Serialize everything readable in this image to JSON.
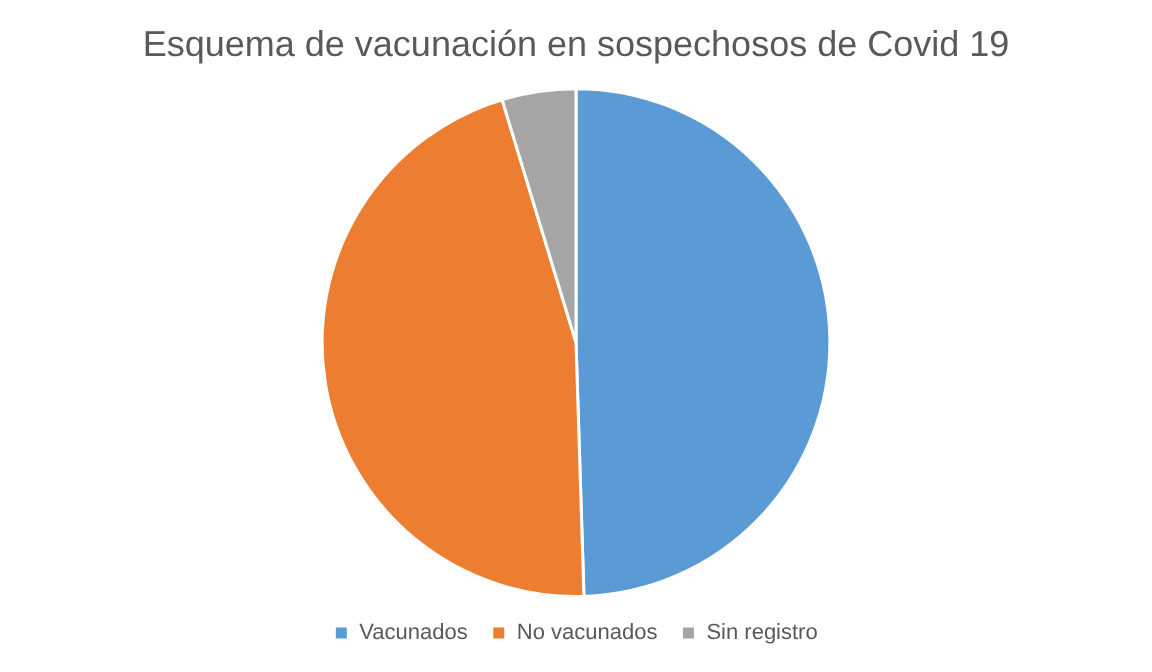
{
  "chart_data": {
    "type": "pie",
    "title": "Esquema de vacunación en sospechosos de Covid 19",
    "categories": [
      "Vacunados",
      "No vacunados",
      "Sin registro"
    ],
    "values": [
      49.5,
      45.8,
      4.7
    ],
    "colors": [
      "#5b9bd5",
      "#ed7d31",
      "#a5a5a5"
    ],
    "legend": "bottom"
  }
}
